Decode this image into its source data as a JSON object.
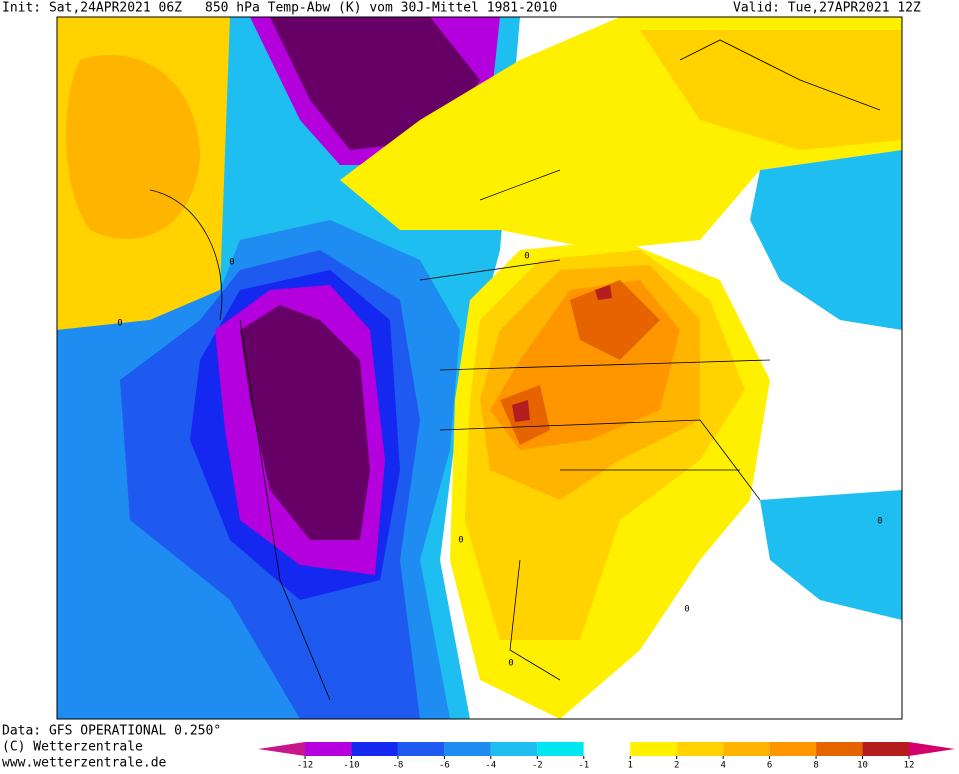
{
  "header": {
    "init": "Init: Sat,24APR2021 06Z",
    "title": "850 hPa Temp-Abw (K) vom 30J-Mittel 1981-2010",
    "valid": "Valid: Tue,27APR2021 12Z"
  },
  "footer": [
    "Data: GFS OPERATIONAL 0.250°",
    "(C) Wetterzentrale",
    "www.wetterzentrale.de"
  ],
  "contour_labels": [
    "0",
    "0",
    "0",
    "0",
    "0",
    "0",
    "0"
  ],
  "colorbar": {
    "ticks": [
      -12,
      -10,
      -8,
      -6,
      -4,
      -2,
      -1,
      1,
      2,
      4,
      6,
      8,
      10,
      12
    ],
    "colors": [
      "#c8168c",
      "#b400dc",
      "#1428f0",
      "#1e5af0",
      "#1e8cf0",
      "#1ebef0",
      "#00e6f0",
      "#ffffff",
      "#fff000",
      "#ffd200",
      "#ffb400",
      "#ff9600",
      "#e66400",
      "#b41e1e",
      "#d4006e"
    ]
  }
}
